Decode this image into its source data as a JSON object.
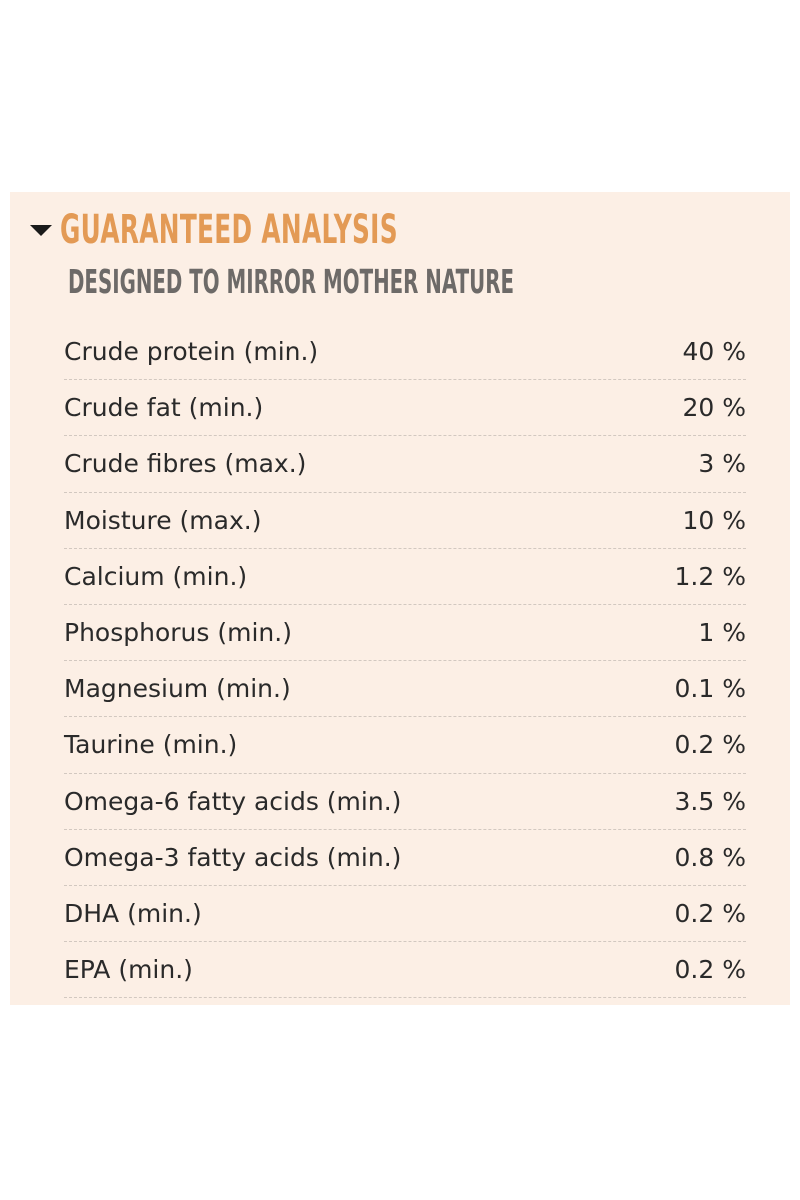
{
  "header": {
    "title": "GUARANTEED ANALYSIS",
    "subtitle": "DESIGNED TO MIRROR MOTHER NATURE"
  },
  "table": {
    "rows": [
      [
        "Crude protein (min.)",
        "40 %"
      ],
      [
        "Crude fat (min.)",
        "20 %"
      ],
      [
        "Crude fibres (max.)",
        "3 %"
      ],
      [
        "Moisture (max.)",
        "10 %"
      ],
      [
        "Calcium (min.)",
        "1.2 %"
      ],
      [
        "Phosphorus (min.)",
        "1 %"
      ],
      [
        "Magnesium (min.)",
        "0.1 %"
      ],
      [
        "Taurine (min.)",
        "0.2 %"
      ],
      [
        "Omega-6 fatty acids (min.)",
        "3.5 %"
      ],
      [
        "Omega-3 fatty acids (min.)",
        "0.8 %"
      ],
      [
        "DHA (min.)",
        "0.2 %"
      ],
      [
        "EPA (min.)",
        "0.2 %"
      ]
    ]
  }
}
